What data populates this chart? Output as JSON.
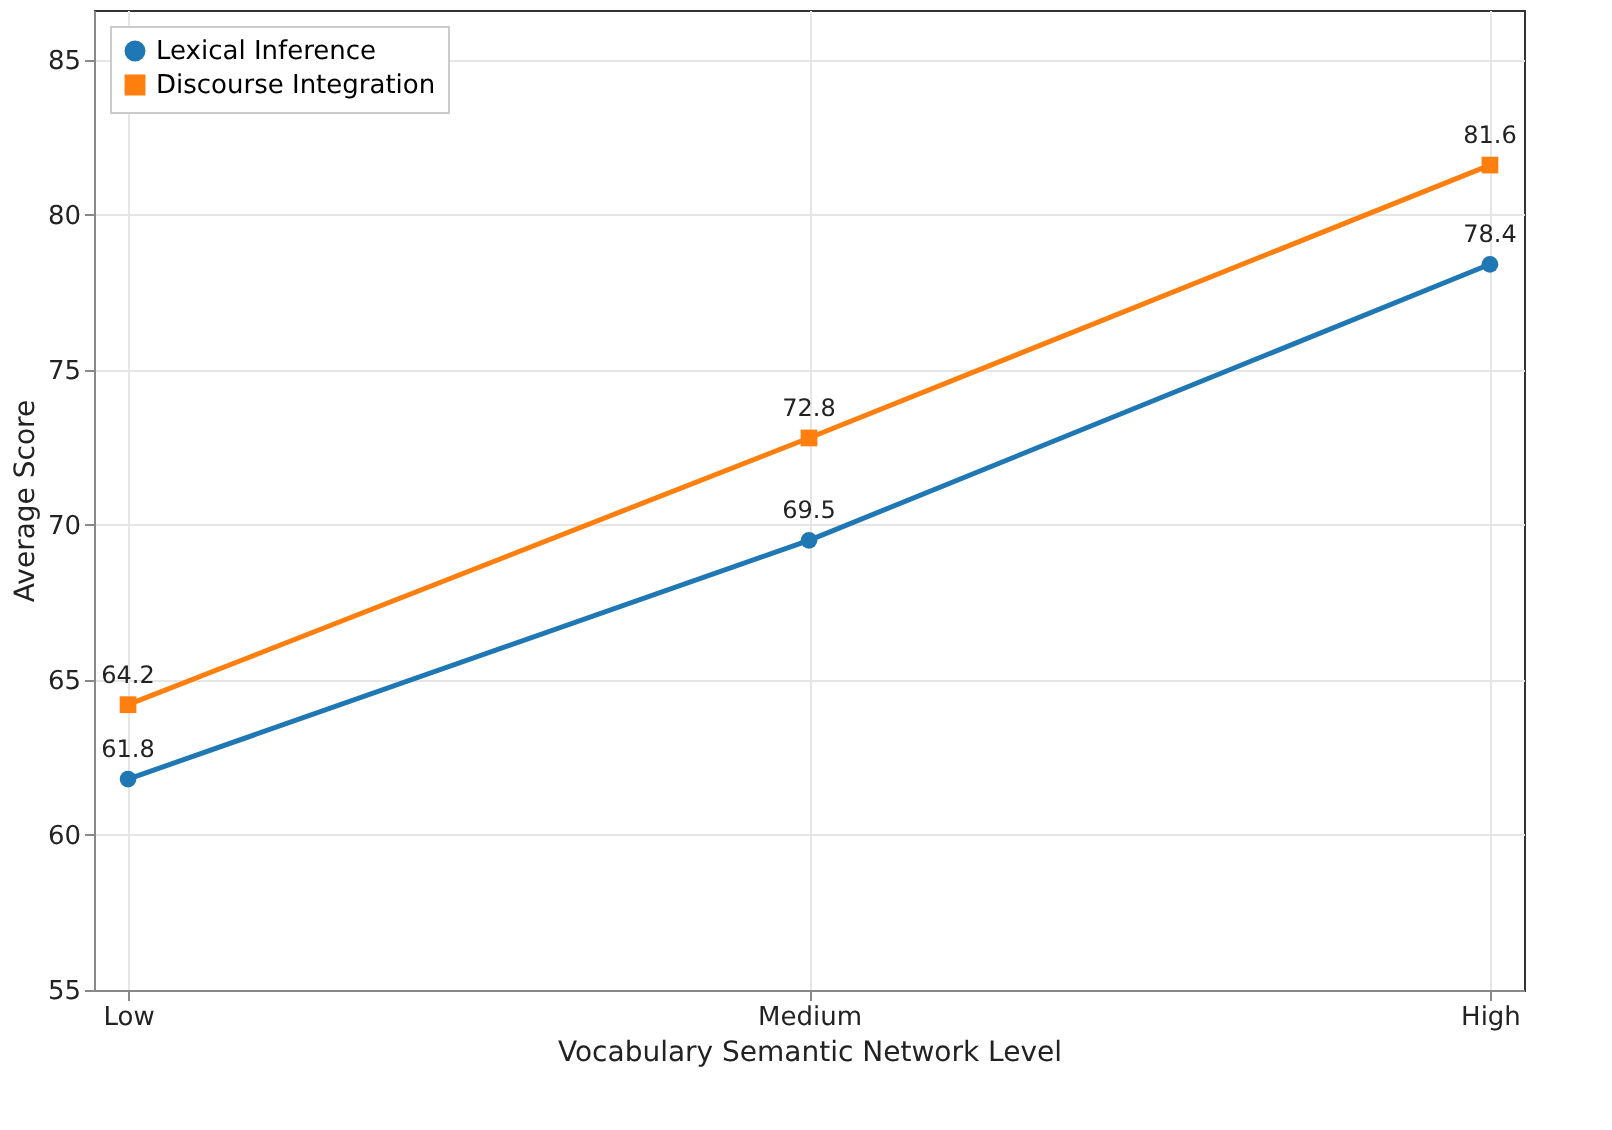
{
  "chart_data": {
    "type": "line",
    "xlabel": "Vocabulary Semantic Network Level",
    "ylabel": "Average Score",
    "categories": [
      "Low",
      "Medium",
      "High"
    ],
    "series": [
      {
        "name": "Lexical Inference",
        "color": "#1f77b4",
        "marker": "circle",
        "values": [
          61.8,
          69.5,
          78.4
        ]
      },
      {
        "name": "Discourse Integration",
        "color": "#ff7f0e",
        "marker": "square",
        "values": [
          64.2,
          72.8,
          81.6
        ]
      }
    ],
    "ylim": [
      55,
      86.6
    ],
    "yticks": [
      55,
      60,
      65,
      70,
      75,
      80,
      85
    ],
    "grid": true,
    "legend": "top left",
    "data_labels": true,
    "line_style": "solid"
  }
}
